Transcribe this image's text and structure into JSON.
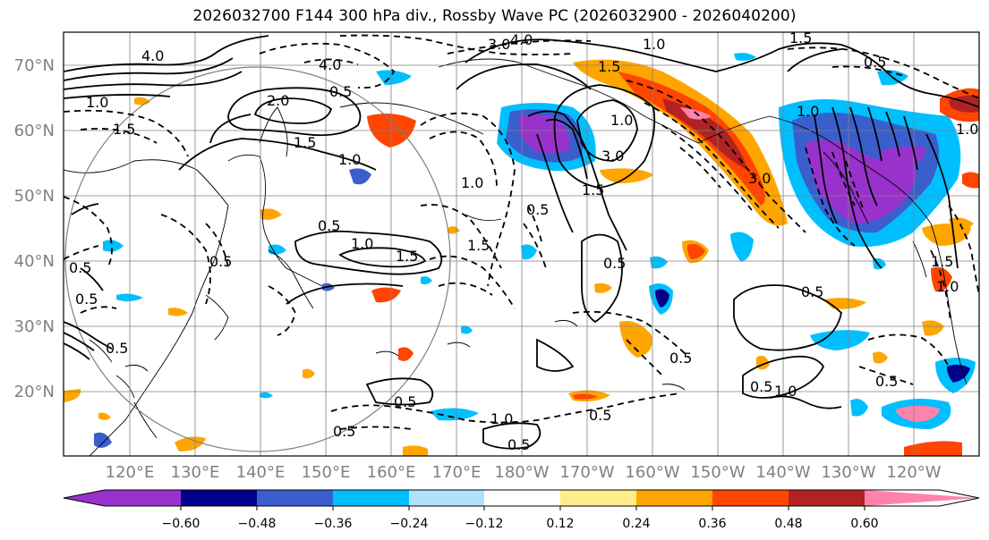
{
  "title": "2026032700 F144 300 hPa div., Rossby Wave PC (2026032900 - 2026040200)",
  "lat_labels": [
    "70°N",
    "60°N",
    "50°N",
    "40°N",
    "30°N",
    "20°N"
  ],
  "lon_labels": [
    "120°E",
    "130°E",
    "140°E",
    "150°E",
    "160°E",
    "170°E",
    "180°W",
    "170°W",
    "160°W",
    "150°W",
    "140°W",
    "130°W",
    "120°W"
  ],
  "colorbar": {
    "colors": [
      "#9932cc",
      "#00008b",
      "#3a5fcd",
      "#00bfff",
      "#b0e2ff",
      "#ffffff",
      "#ffec8b",
      "#ffa500",
      "#ff4500",
      "#b22222",
      "#ff82ab"
    ],
    "tick_labels": [
      "−0.60",
      "−0.48",
      "−0.36",
      "−0.24",
      "−0.12",
      "0.12",
      "0.24",
      "0.36",
      "0.48",
      "0.60"
    ]
  },
  "contour_labels": [
    "4.0",
    "3.0",
    "4.0",
    "1.5",
    "1.0",
    "0.5",
    "1.0",
    "4.0",
    "2.0",
    "0.5",
    "1.5",
    "1.5",
    "1.0",
    "1.5",
    "1.0",
    "0.5",
    "1.0",
    "0.5",
    "1.5",
    "1.5",
    "1.0",
    "1.5",
    "3.0",
    "1.0",
    "3.0",
    "0.5",
    "0.5",
    "1.0",
    "1.5",
    "0.5",
    "1.0",
    "0.5",
    "0.5",
    "0.5",
    "0.5",
    "1.0",
    "0.5",
    "0.5",
    "1.0",
    "0.5",
    "0.5",
    "0.5",
    "0.5"
  ]
}
